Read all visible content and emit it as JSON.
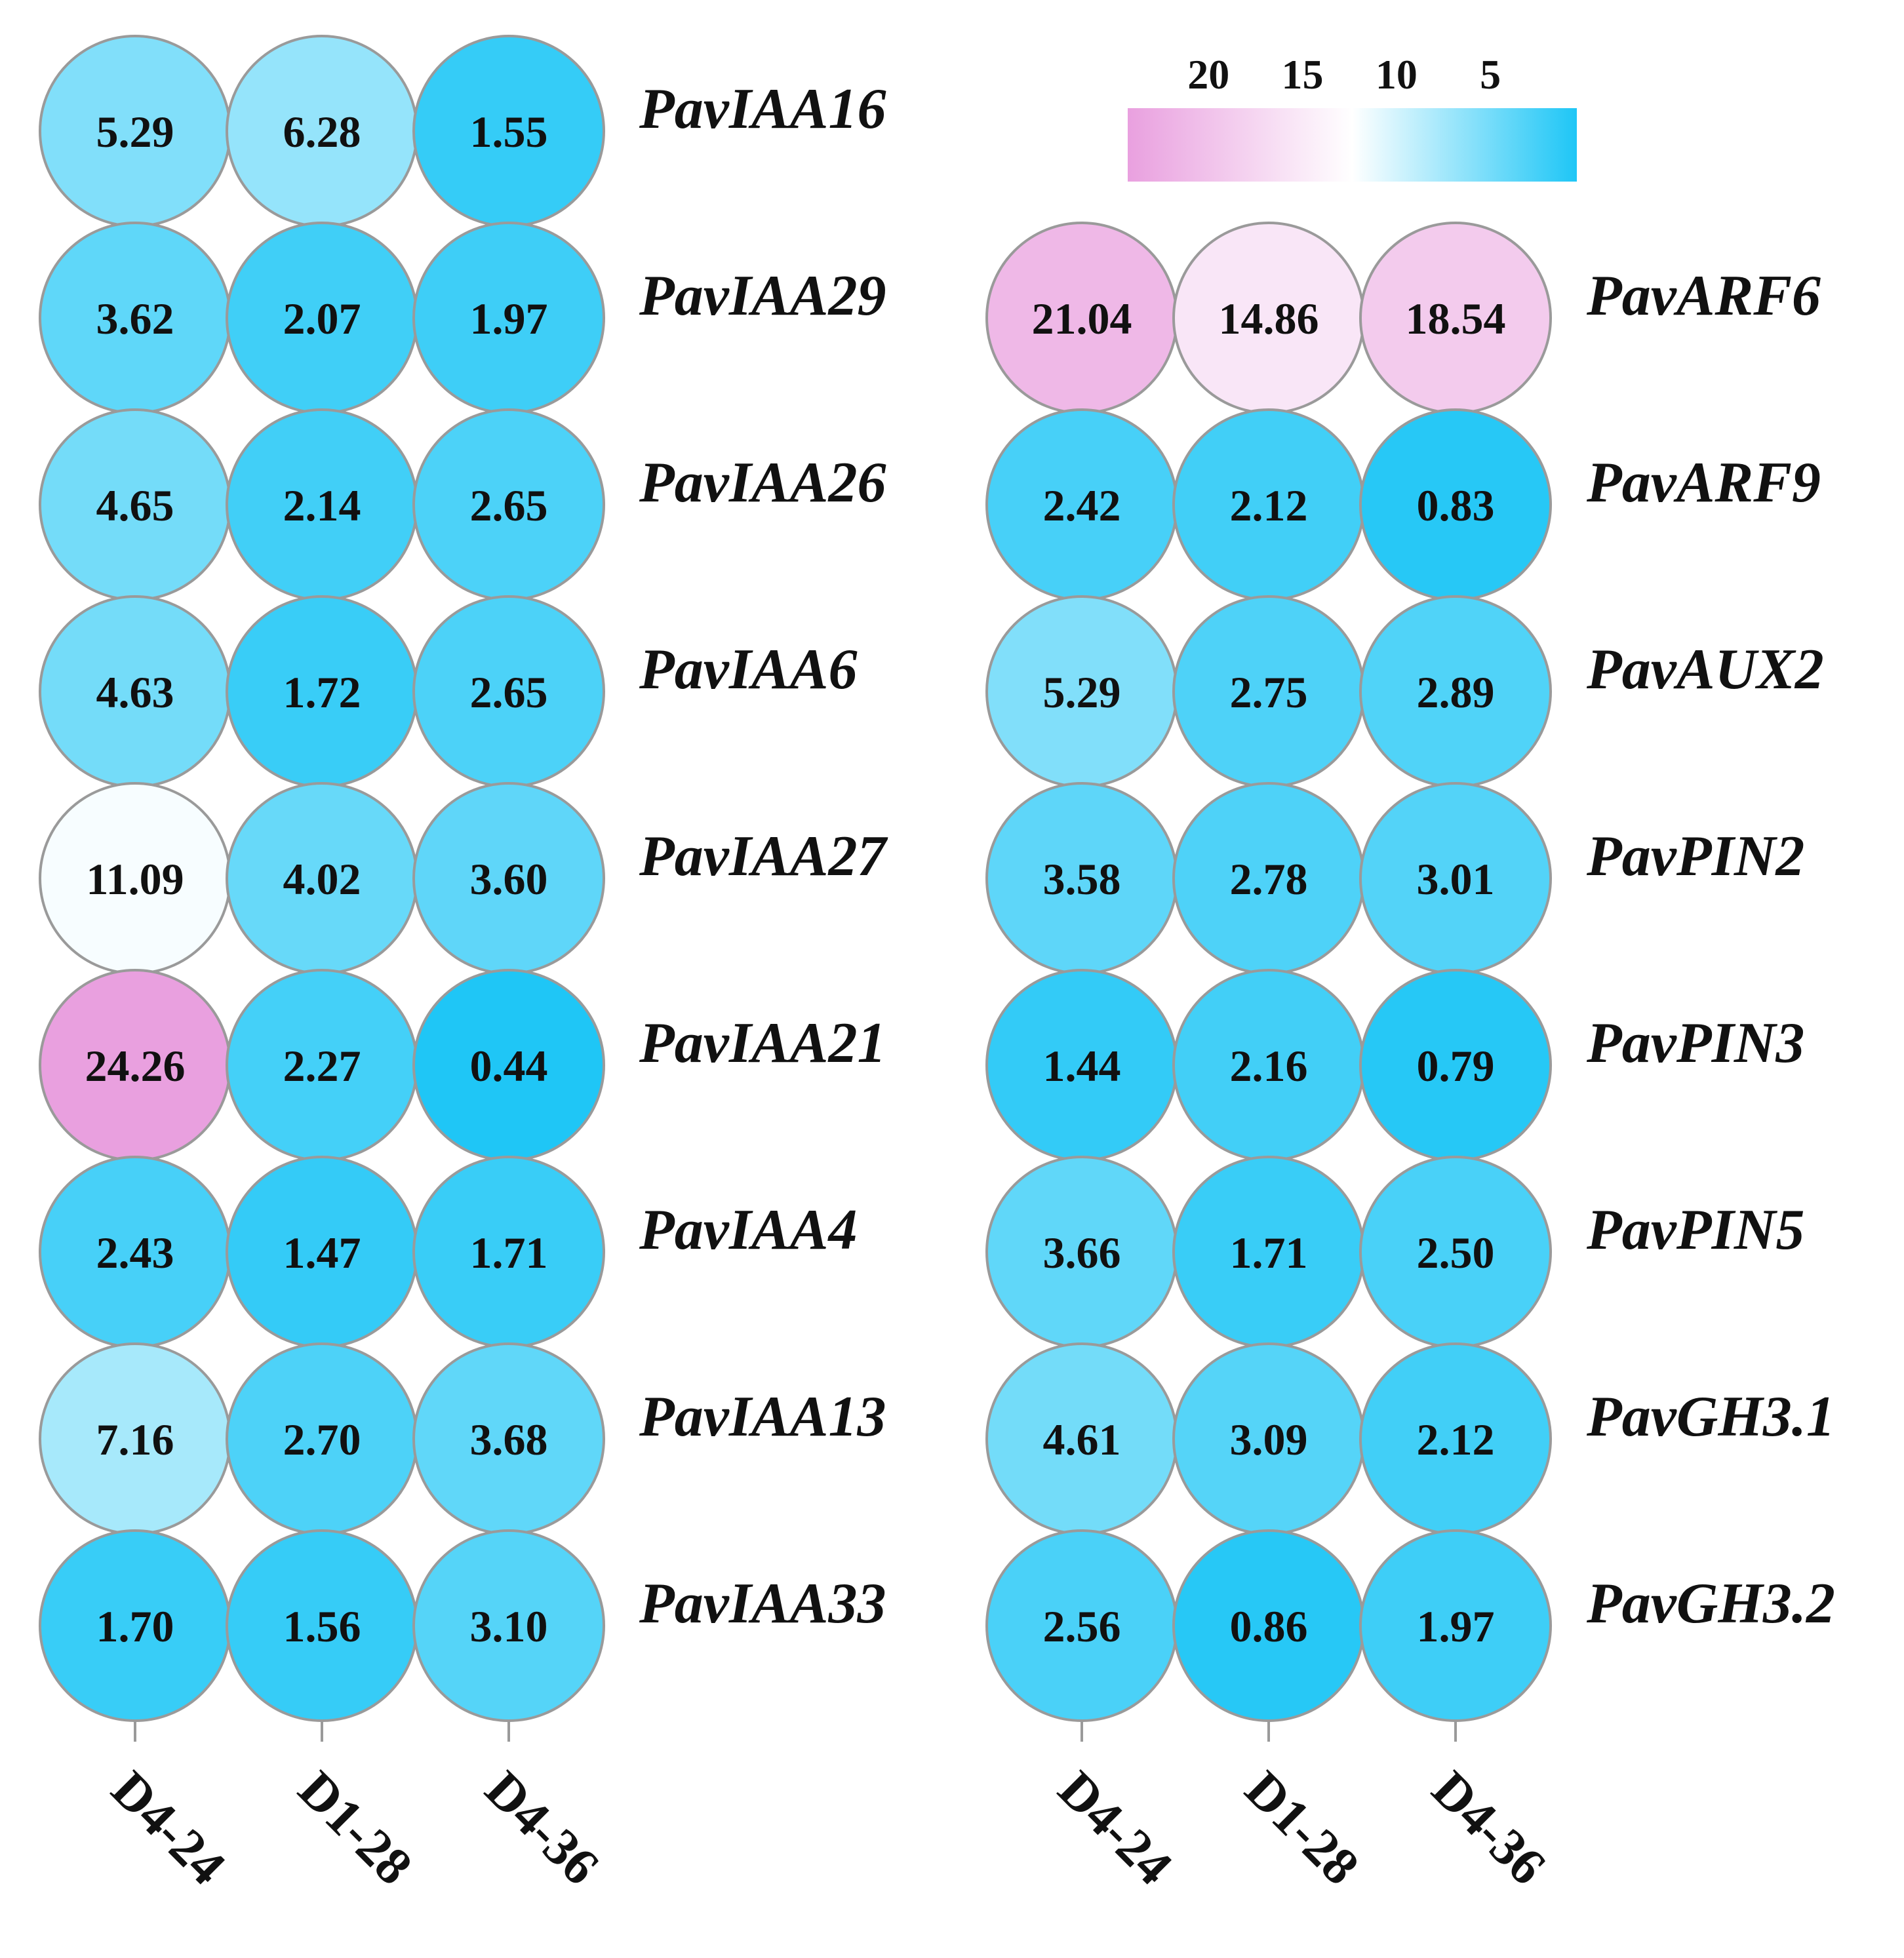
{
  "chart_data": {
    "type": "heatmap",
    "colors": {
      "high": "#e9a0df",
      "mid": "#ffffff",
      "low": "#1ec6f6",
      "cell_border": "#9a9a9a",
      "tick": "#9a9a9a"
    },
    "scale": {
      "min": 0.4,
      "mid": 11.5,
      "max": 24.3
    },
    "legend": {
      "tick_labels": [
        "20",
        "15",
        "10",
        "5"
      ],
      "tick_values": [
        20,
        15,
        10,
        5
      ],
      "placement": "top-right"
    },
    "panels": [
      {
        "columns": [
          "D4-24",
          "D1-28",
          "D4-36"
        ],
        "rows": [
          {
            "gene": "PavIAA16",
            "values": [
              "5.29",
              "6.28",
              "1.55"
            ]
          },
          {
            "gene": "PavIAA29",
            "values": [
              "3.62",
              "2.07",
              "1.97"
            ]
          },
          {
            "gene": "PavIAA26",
            "values": [
              "4.65",
              "2.14",
              "2.65"
            ]
          },
          {
            "gene": "PavIAA6",
            "values": [
              "4.63",
              "1.72",
              "2.65"
            ]
          },
          {
            "gene": "PavIAA27",
            "values": [
              "11.09",
              "4.02",
              "3.60"
            ]
          },
          {
            "gene": "PavIAA21",
            "values": [
              "24.26",
              "2.27",
              "0.44"
            ]
          },
          {
            "gene": "PavIAA4",
            "values": [
              "2.43",
              "1.47",
              "1.71"
            ]
          },
          {
            "gene": "PavIAA13",
            "values": [
              "7.16",
              "2.70",
              "3.68"
            ]
          },
          {
            "gene": "PavIAA33",
            "values": [
              "1.70",
              "1.56",
              "3.10"
            ]
          }
        ]
      },
      {
        "columns": [
          "D4-24",
          "D1-28",
          "D4-36"
        ],
        "rows": [
          {
            "gene": "PavARF6",
            "values": [
              "21.04",
              "14.86",
              "18.54"
            ]
          },
          {
            "gene": "PavARF9",
            "values": [
              "2.42",
              "2.12",
              "0.83"
            ]
          },
          {
            "gene": "PavAUX2",
            "values": [
              "5.29",
              "2.75",
              "2.89"
            ]
          },
          {
            "gene": "PavPIN2",
            "values": [
              "3.58",
              "2.78",
              "3.01"
            ]
          },
          {
            "gene": "PavPIN3",
            "values": [
              "1.44",
              "2.16",
              "0.79"
            ]
          },
          {
            "gene": "PavPIN5",
            "values": [
              "3.66",
              "1.71",
              "2.50"
            ]
          },
          {
            "gene": "PavGH3.1",
            "values": [
              "4.61",
              "3.09",
              "2.12"
            ]
          },
          {
            "gene": "PavGH3.2",
            "values": [
              "2.56",
              "0.86",
              "1.97"
            ]
          }
        ]
      }
    ]
  }
}
